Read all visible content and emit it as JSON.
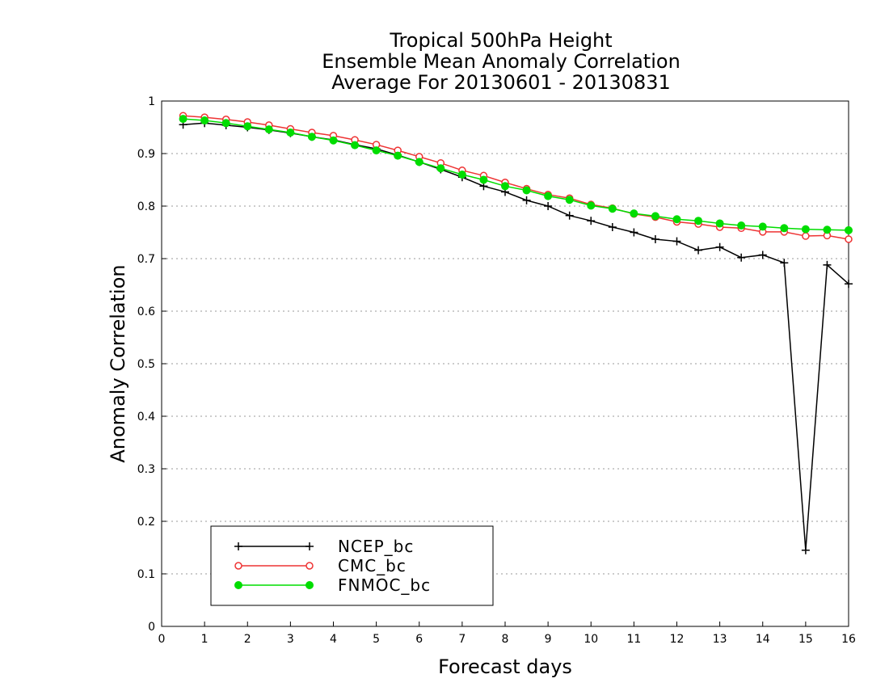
{
  "chart_data": {
    "type": "line",
    "title_lines": [
      "Tropical 500hPa Height",
      "Ensemble Mean Anomaly Correlation",
      "Average For 20130601 - 20130831"
    ],
    "xlabel": "Forecast days",
    "ylabel": "Anomaly Correlation",
    "xlim": [
      0,
      16
    ],
    "ylim": [
      0,
      1
    ],
    "x_ticks": [
      0,
      1,
      2,
      3,
      4,
      5,
      6,
      7,
      8,
      9,
      10,
      11,
      12,
      13,
      14,
      15,
      16
    ],
    "y_ticks": [
      0,
      0.1,
      0.2,
      0.3,
      0.4,
      0.5,
      0.6,
      0.7,
      0.8,
      0.9,
      1
    ],
    "y_tick_labels": [
      "0",
      "0.1",
      "0.2",
      "0.3",
      "0.4",
      "0.5",
      "0.6",
      "0.7",
      "0.8",
      "0.9",
      "1"
    ],
    "grid": "horizontal-dotted",
    "legend_position": "bottom-left",
    "x": [
      0.5,
      1,
      1.5,
      2,
      2.5,
      3,
      3.5,
      4,
      4.5,
      5,
      5.5,
      6,
      6.5,
      7,
      7.5,
      8,
      8.5,
      9,
      9.5,
      10,
      10.5,
      11,
      11.5,
      12,
      12.5,
      13,
      13.5,
      14,
      14.5,
      15,
      15.5,
      16
    ],
    "series": [
      {
        "name": "NCEP_bc",
        "color": "#000000",
        "marker": "plus",
        "values": [
          0.955,
          0.958,
          0.954,
          0.95,
          0.945,
          0.939,
          0.932,
          0.926,
          0.917,
          0.909,
          0.897,
          0.884,
          0.87,
          0.855,
          0.838,
          0.827,
          0.811,
          0.8,
          0.782,
          0.772,
          0.76,
          0.75,
          0.737,
          0.733,
          0.716,
          0.722,
          0.702,
          0.707,
          0.692,
          0.145,
          0.688,
          0.652
        ]
      },
      {
        "name": "CMC_bc",
        "color": "#ee3333",
        "marker": "open-circle",
        "values": [
          0.972,
          0.969,
          0.965,
          0.96,
          0.954,
          0.947,
          0.94,
          0.934,
          0.926,
          0.917,
          0.906,
          0.894,
          0.882,
          0.868,
          0.858,
          0.845,
          0.833,
          0.822,
          0.815,
          0.803,
          0.796,
          0.785,
          0.779,
          0.77,
          0.766,
          0.76,
          0.758,
          0.751,
          0.751,
          0.743,
          0.744,
          0.737
        ]
      },
      {
        "name": "FNMOC_bc",
        "color": "#00dd00",
        "marker": "filled-circle",
        "values": [
          0.966,
          0.963,
          0.958,
          0.952,
          0.946,
          0.94,
          0.932,
          0.925,
          0.916,
          0.906,
          0.896,
          0.884,
          0.872,
          0.86,
          0.85,
          0.838,
          0.83,
          0.819,
          0.812,
          0.801,
          0.795,
          0.786,
          0.781,
          0.775,
          0.772,
          0.767,
          0.763,
          0.761,
          0.758,
          0.756,
          0.755,
          0.754
        ]
      }
    ]
  }
}
